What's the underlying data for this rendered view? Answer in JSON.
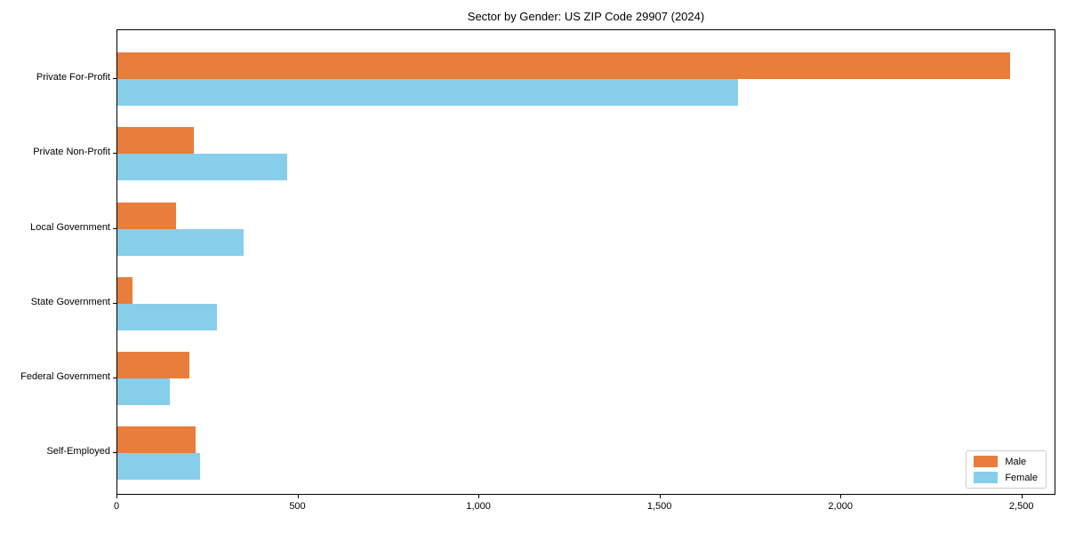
{
  "chart_data": {
    "type": "bar",
    "orientation": "horizontal",
    "title": "Sector by Gender: US ZIP Code 29907 (2024)",
    "categories": [
      "Private For-Profit",
      "Private Non-Profit",
      "Local Government",
      "State Government",
      "Federal Government",
      "Self-Employed"
    ],
    "series": [
      {
        "name": "Male",
        "color": "#E87D3C",
        "values": [
          2465,
          211,
          162,
          42,
          199,
          215
        ]
      },
      {
        "name": "Female",
        "color": "#87CEEB",
        "values": [
          1715,
          469,
          349,
          275,
          146,
          229
        ]
      }
    ],
    "xlabel": "",
    "ylabel": "",
    "xlim": [
      0,
      2594
    ],
    "x_ticks": {
      "values": [
        0,
        500,
        1000,
        1500,
        2000,
        2500
      ],
      "labels": [
        "0",
        "500",
        "1,000",
        "1,500",
        "2,000",
        "2,500"
      ]
    },
    "grid": false,
    "legend_position": "lower right",
    "background_color": "#FFFFFF",
    "axis_color": "#000000",
    "legend_border_color": "#CCCCCC"
  }
}
